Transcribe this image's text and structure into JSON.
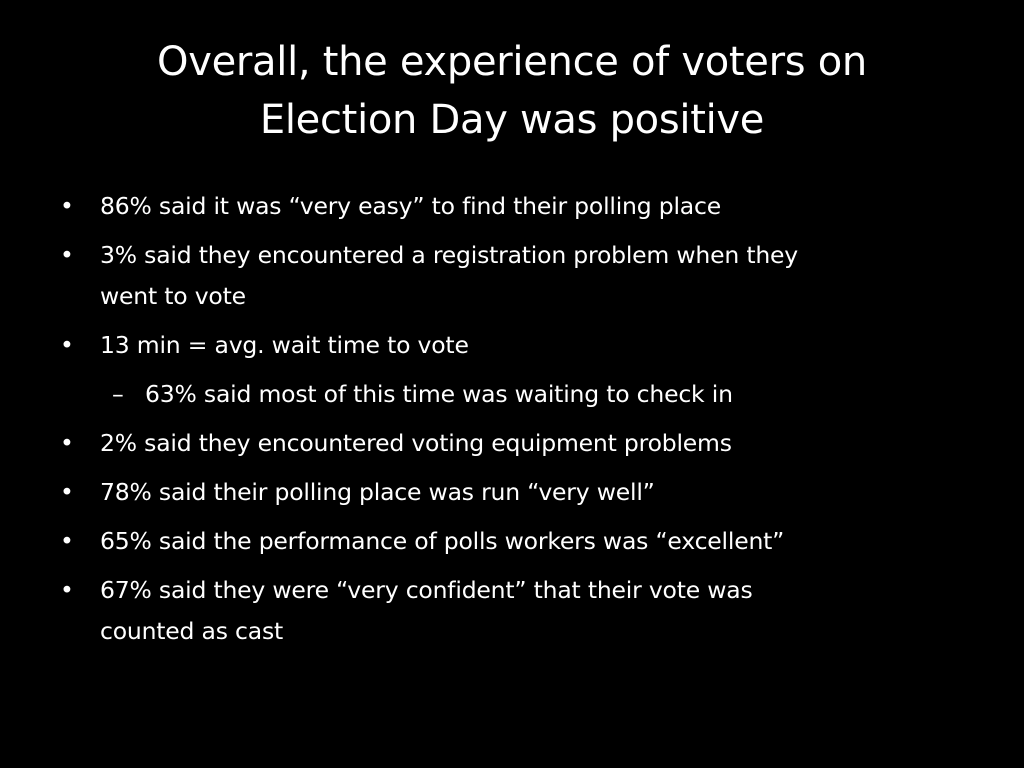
{
  "slide": {
    "title_lines": [
      "Overall, the experience of voters on",
      "Election Day was positive"
    ],
    "bullets": [
      {
        "marker": "•",
        "level": 1,
        "lines": [
          "86% said it was “very easy” to find their polling place"
        ]
      },
      {
        "marker": "•",
        "level": 1,
        "lines": [
          "3% said they encountered a registration problem when they",
          "went to vote"
        ]
      },
      {
        "marker": "•",
        "level": 1,
        "lines": [
          "13 min = avg. wait time to vote"
        ]
      },
      {
        "marker": "–",
        "level": 2,
        "lines": [
          "63% said most of this time was waiting to check in"
        ]
      },
      {
        "marker": "•",
        "level": 1,
        "lines": [
          "2% said they encountered voting equipment problems"
        ]
      },
      {
        "marker": "•",
        "level": 1,
        "lines": [
          "78% said their polling place was run “very well”"
        ]
      },
      {
        "marker": "•",
        "level": 1,
        "lines": [
          "65% said the performance of polls workers was “excellent”"
        ]
      },
      {
        "marker": "•",
        "level": 1,
        "lines": [
          "67% said they were “very confident” that their vote was",
          "counted as cast"
        ]
      }
    ]
  },
  "colors": {
    "background": "#000000",
    "text": "#ffffff"
  }
}
